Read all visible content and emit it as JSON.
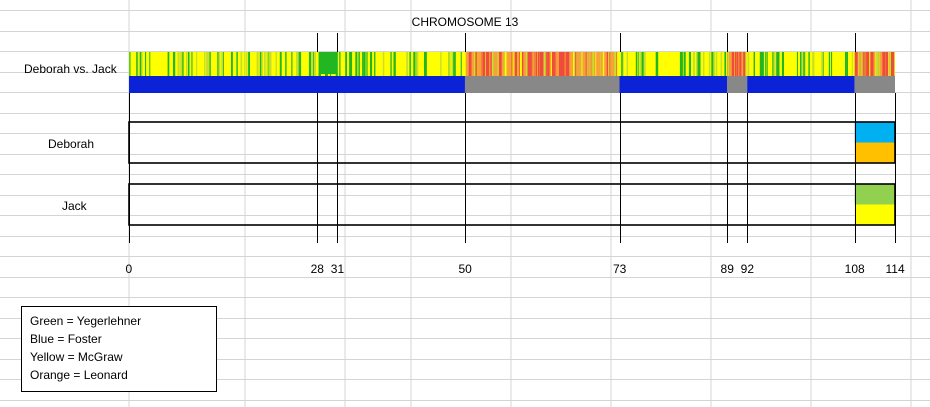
{
  "chart_data": {
    "type": "bar",
    "title": "CHROMOSOME 13",
    "comparison": {
      "label": "Deborah vs. Jack",
      "colors": {
        "bright_green": "#22b722",
        "yellow_green": "#c8e02a",
        "yellow": "#ffff00",
        "orange": "#f4a23a",
        "red": "#ef4b3f",
        "blue": "#0b22d6",
        "gray": "#888888"
      },
      "match_segments": [
        {
          "start": 0,
          "end": 50,
          "type": "match"
        },
        {
          "start": 50,
          "end": 73,
          "type": "no-match"
        },
        {
          "start": 73,
          "end": 89,
          "type": "match"
        },
        {
          "start": 89,
          "end": 92,
          "type": "no-match"
        },
        {
          "start": 92,
          "end": 108,
          "type": "match"
        },
        {
          "start": 108,
          "end": 114,
          "type": "no-match"
        }
      ],
      "solid_green_region": [
        28,
        31
      ]
    },
    "rows": [
      {
        "label": "Deborah",
        "segments": [
          {
            "start": 108,
            "end": 114,
            "top_color": "#00b0f0",
            "bottom_color": "#ffc000"
          }
        ]
      },
      {
        "label": "Jack",
        "segments": [
          {
            "start": 108,
            "end": 114,
            "top_color": "#92d050",
            "bottom_color": "#ffff00"
          }
        ]
      }
    ],
    "boundaries": [
      0,
      28,
      31,
      50,
      73,
      89,
      92,
      108,
      114
    ],
    "tick_labels": [
      "0",
      "28",
      "31",
      "50",
      "73",
      "89",
      "92",
      "108",
      "114"
    ],
    "xlim": [
      0,
      114
    ],
    "grid": true
  },
  "legend": {
    "items": [
      "Green = Yegerlehner",
      "Blue = Foster",
      "Yellow = McGraw",
      "Orange = Leonard"
    ]
  }
}
